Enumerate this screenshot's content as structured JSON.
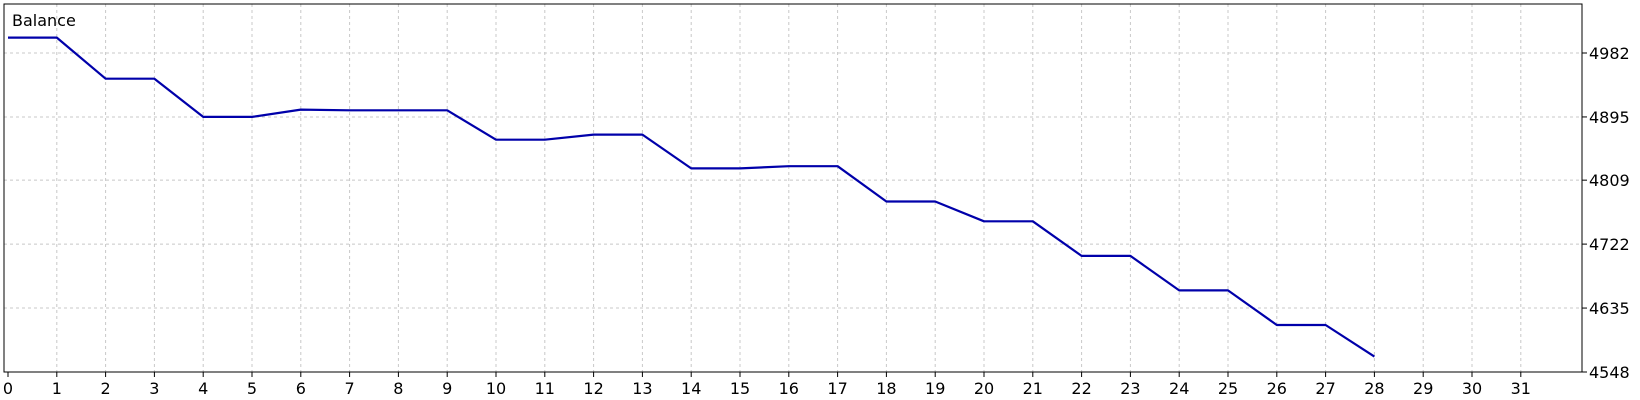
{
  "chart_data": {
    "type": "line",
    "title": "Balance",
    "xlabel": "",
    "ylabel": "",
    "grid": true,
    "xlim": [
      0,
      31
    ],
    "ylim": [
      4548,
      5012
    ],
    "x_ticks": [
      0,
      1,
      2,
      3,
      4,
      5,
      6,
      7,
      8,
      9,
      10,
      11,
      12,
      13,
      14,
      15,
      16,
      17,
      18,
      19,
      20,
      21,
      22,
      23,
      24,
      25,
      26,
      27,
      28,
      29,
      30,
      31
    ],
    "y_ticks": [
      4982,
      4895,
      4809,
      4722,
      4635,
      4548
    ],
    "y_tick_labels": [
      "4982",
      "4895",
      "4809",
      "4722",
      "4635",
      "4548"
    ],
    "series": [
      {
        "name": "Balance",
        "color": "#0000aa",
        "x": [
          0,
          1,
          2,
          3,
          4,
          5,
          6,
          7,
          8,
          9,
          10,
          11,
          12,
          13,
          14,
          15,
          16,
          17,
          18,
          19,
          20,
          21,
          22,
          23,
          24,
          25,
          26,
          27,
          28
        ],
        "values": [
          5003,
          5003,
          4947,
          4947,
          4895,
          4895,
          4905,
          4904,
          4904,
          4904,
          4864,
          4864,
          4871,
          4871,
          4825,
          4825,
          4828,
          4828,
          4780,
          4780,
          4753,
          4753,
          4706,
          4706,
          4659,
          4659,
          4612,
          4612,
          4569
        ]
      }
    ],
    "colors": {
      "line": "#0000aa",
      "grid": "#c8c8c8",
      "axis": "#000000",
      "background": "#ffffff"
    }
  }
}
